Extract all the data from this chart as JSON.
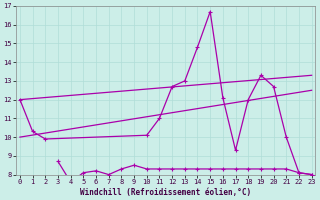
{
  "xlabel": "Windchill (Refroidissement éolien,°C)",
  "background_color": "#cceee8",
  "grid_color": "#b0ddd8",
  "line_color": "#aa00aa",
  "x_data": [
    0,
    1,
    2,
    3,
    4,
    5,
    6,
    7,
    8,
    9,
    10,
    11,
    12,
    13,
    14,
    15,
    16,
    17,
    18,
    19,
    20,
    21,
    22,
    23
  ],
  "line1": [
    12.0,
    10.3,
    9.9,
    null,
    null,
    null,
    null,
    null,
    null,
    null,
    10.1,
    11.0,
    12.7,
    13.0,
    14.8,
    16.7,
    12.1,
    9.3,
    12.0,
    13.3,
    12.7,
    10.0,
    8.1,
    8.0
  ],
  "line_low": [
    null,
    null,
    null,
    8.7,
    7.6,
    8.1,
    8.2,
    8.0,
    8.3,
    8.5,
    8.3,
    8.3,
    8.3,
    8.3,
    8.3,
    8.3,
    8.3,
    8.3,
    8.3,
    8.3,
    8.3,
    8.3,
    8.1,
    8.0
  ],
  "lin1_start": 12.0,
  "lin1_end": 13.3,
  "lin2_start": 10.0,
  "lin2_end": 12.5,
  "ylim_min": 8,
  "ylim_max": 17,
  "xlim_min": 0,
  "xlim_max": 23,
  "yticks": [
    8,
    9,
    10,
    11,
    12,
    13,
    14,
    15,
    16,
    17
  ],
  "xticks": [
    0,
    1,
    2,
    3,
    4,
    5,
    6,
    7,
    8,
    9,
    10,
    11,
    12,
    13,
    14,
    15,
    16,
    17,
    18,
    19,
    20,
    21,
    22,
    23
  ],
  "xlabel_fontsize": 5.5,
  "tick_fontsize": 5.0,
  "linewidth": 0.9,
  "markersize": 3.5
}
